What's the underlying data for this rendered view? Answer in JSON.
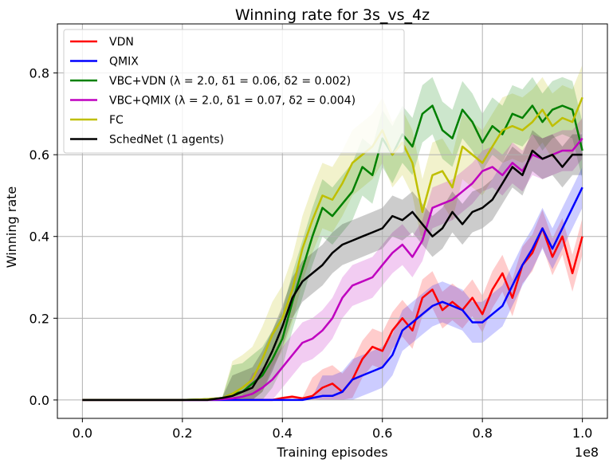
{
  "chart_data": {
    "type": "line",
    "title": "Winning rate for 3s_vs_4z",
    "xlabel": "Training episodes",
    "ylabel": "Winning rate",
    "x_offset_label": "1e8",
    "xlim": [
      0.0,
      1.0
    ],
    "ylim": [
      0.0,
      0.8
    ],
    "xticks": [
      "0.0",
      "0.2",
      "0.4",
      "0.6",
      "0.8",
      "1.0"
    ],
    "yticks": [
      "0.0",
      "0.2",
      "0.4",
      "0.6",
      "0.8"
    ],
    "grid": true,
    "legend_position": "top-left",
    "x": [
      0.0,
      0.05,
      0.1,
      0.15,
      0.2,
      0.25,
      0.28,
      0.3,
      0.32,
      0.34,
      0.36,
      0.38,
      0.4,
      0.42,
      0.44,
      0.46,
      0.48,
      0.5,
      0.52,
      0.54,
      0.56,
      0.58,
      0.6,
      0.62,
      0.64,
      0.66,
      0.68,
      0.7,
      0.72,
      0.74,
      0.76,
      0.78,
      0.8,
      0.82,
      0.84,
      0.86,
      0.88,
      0.9,
      0.92,
      0.94,
      0.96,
      0.98,
      1.0
    ],
    "series": [
      {
        "name": "VDN",
        "color": "#ff0000",
        "values": [
          0,
          0,
          0,
          0,
          0,
          0,
          0,
          0,
          0,
          0,
          0,
          0,
          0.005,
          0.008,
          0.004,
          0.01,
          0.03,
          0.04,
          0.02,
          0.05,
          0.1,
          0.13,
          0.12,
          0.17,
          0.2,
          0.17,
          0.25,
          0.27,
          0.22,
          0.24,
          0.22,
          0.25,
          0.21,
          0.27,
          0.31,
          0.25,
          0.33,
          0.36,
          0.42,
          0.35,
          0.4,
          0.31,
          0.4
        ],
        "band": 0.045
      },
      {
        "name": "QMIX",
        "color": "#0000ff",
        "values": [
          0,
          0,
          0,
          0,
          0,
          0,
          0,
          0,
          0,
          0,
          0,
          0,
          0,
          0,
          0,
          0.005,
          0.01,
          0.01,
          0.02,
          0.05,
          0.06,
          0.07,
          0.08,
          0.11,
          0.17,
          0.19,
          0.21,
          0.23,
          0.24,
          0.23,
          0.22,
          0.19,
          0.19,
          0.21,
          0.23,
          0.28,
          0.33,
          0.37,
          0.42,
          0.37,
          0.42,
          0.47,
          0.52
        ],
        "band": 0.05
      },
      {
        "name": "VBC+VDN (λ = 2.0, δ1 = 0.06, δ2 = 0.002)",
        "color": "#008000",
        "values": [
          0,
          0,
          0,
          0,
          0,
          0.002,
          0.005,
          0.015,
          0.02,
          0.04,
          0.06,
          0.1,
          0.15,
          0.24,
          0.32,
          0.4,
          0.47,
          0.45,
          0.48,
          0.51,
          0.57,
          0.55,
          0.64,
          0.6,
          0.65,
          0.62,
          0.7,
          0.72,
          0.66,
          0.64,
          0.71,
          0.68,
          0.63,
          0.67,
          0.65,
          0.7,
          0.69,
          0.72,
          0.68,
          0.71,
          0.72,
          0.71,
          0.61
        ],
        "band": 0.07
      },
      {
        "name": "VBC+QMIX (λ = 2.0, δ1 = 0.07, δ2 = 0.004)",
        "color": "#bf00bf",
        "values": [
          0,
          0,
          0,
          0,
          0,
          0,
          0.002,
          0.004,
          0.008,
          0.015,
          0.03,
          0.05,
          0.08,
          0.11,
          0.14,
          0.15,
          0.17,
          0.2,
          0.25,
          0.28,
          0.29,
          0.3,
          0.33,
          0.36,
          0.38,
          0.35,
          0.39,
          0.47,
          0.48,
          0.49,
          0.51,
          0.53,
          0.56,
          0.57,
          0.55,
          0.58,
          0.56,
          0.6,
          0.59,
          0.6,
          0.61,
          0.61,
          0.64
        ],
        "band": 0.05
      },
      {
        "name": "FC",
        "color": "#bfbf00",
        "values": [
          0,
          0,
          0,
          0,
          0,
          0.002,
          0.005,
          0.015,
          0.03,
          0.05,
          0.1,
          0.16,
          0.2,
          0.27,
          0.37,
          0.44,
          0.5,
          0.49,
          0.53,
          0.58,
          0.6,
          0.62,
          0.66,
          0.6,
          0.63,
          0.58,
          0.46,
          0.55,
          0.56,
          0.52,
          0.62,
          0.6,
          0.58,
          0.62,
          0.66,
          0.67,
          0.66,
          0.68,
          0.71,
          0.67,
          0.69,
          0.68,
          0.74
        ],
        "band": 0.08
      },
      {
        "name": "SchedNet (1 agents)",
        "color": "#000000",
        "values": [
          0,
          0,
          0,
          0,
          0,
          0,
          0.005,
          0.01,
          0.02,
          0.03,
          0.07,
          0.12,
          0.18,
          0.25,
          0.29,
          0.31,
          0.33,
          0.36,
          0.38,
          0.39,
          0.4,
          0.41,
          0.42,
          0.45,
          0.44,
          0.46,
          0.43,
          0.4,
          0.42,
          0.46,
          0.43,
          0.46,
          0.47,
          0.49,
          0.53,
          0.57,
          0.55,
          0.61,
          0.59,
          0.6,
          0.57,
          0.6,
          0.6
        ],
        "band": 0.05
      }
    ]
  }
}
